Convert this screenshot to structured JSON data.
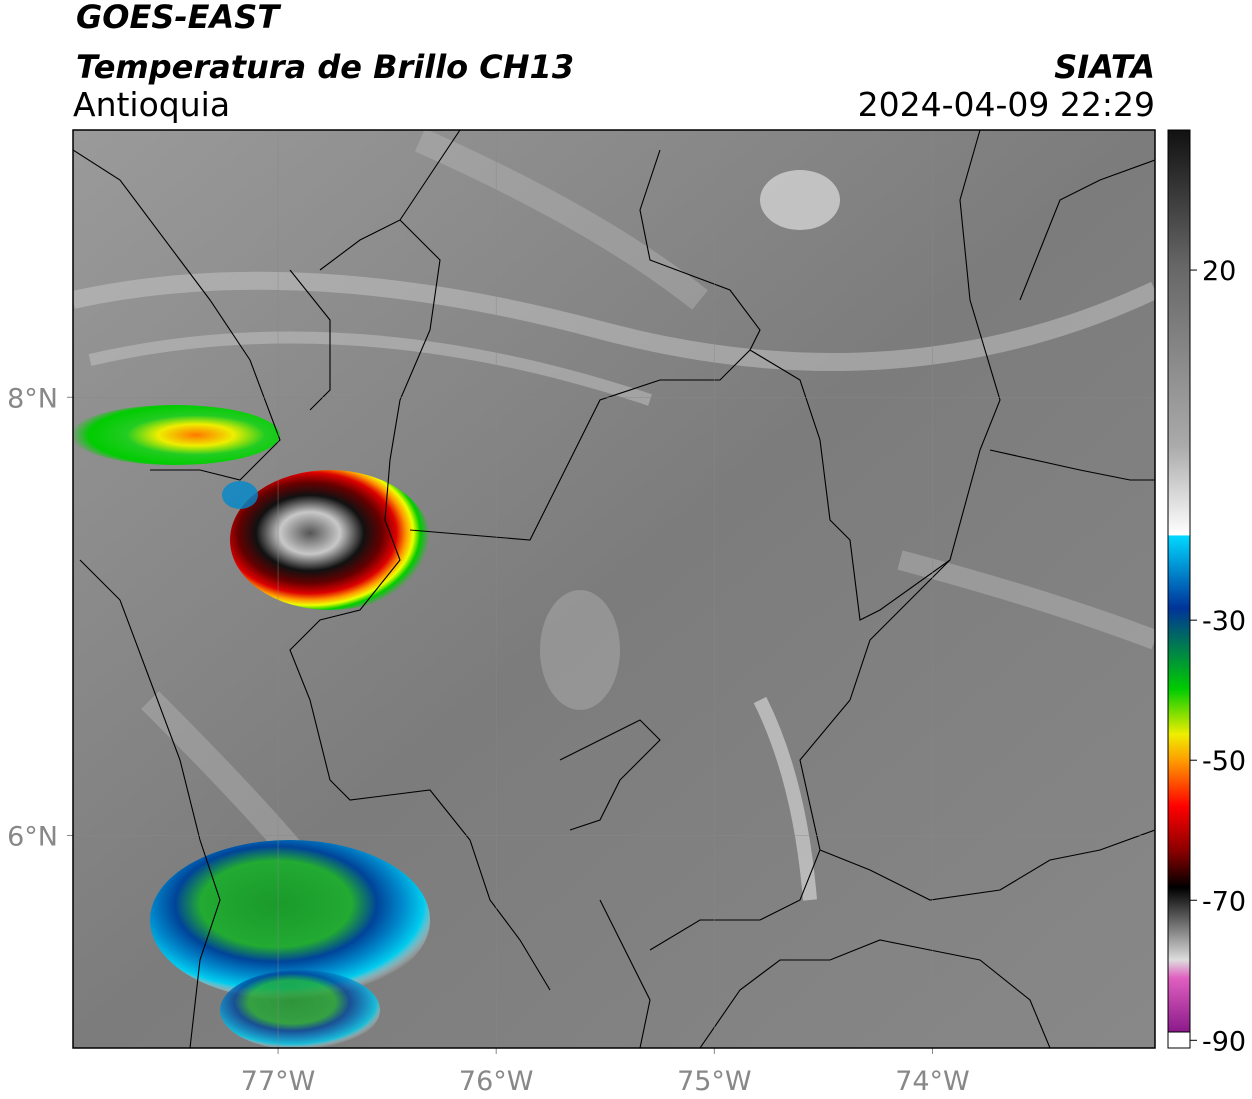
{
  "header": {
    "satellite": "GOES-EAST",
    "product": "Temperatura de Brillo CH13",
    "region": "Antioquia",
    "source": "SIATA",
    "datetime": "2024-04-09 22:29"
  },
  "map": {
    "xlim": [
      -77.94,
      -72.98
    ],
    "ylim": [
      5.03,
      9.22
    ],
    "xticks": [
      {
        "value": -77,
        "label": "77°W"
      },
      {
        "value": -76,
        "label": "76°W"
      },
      {
        "value": -75,
        "label": "75°W"
      },
      {
        "value": -74,
        "label": "74°W"
      }
    ],
    "yticks": [
      {
        "value": 8,
        "label": "8°N"
      },
      {
        "value": 6,
        "label": "6°N"
      }
    ]
  },
  "colorbar": {
    "lim": [
      -91.1,
      40
    ],
    "ticks": [
      20,
      -30,
      -50,
      -70,
      -90
    ]
  }
}
